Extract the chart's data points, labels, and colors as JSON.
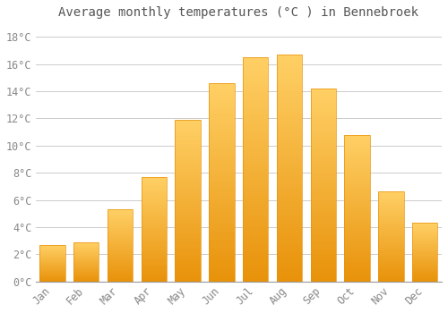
{
  "title": "Average monthly temperatures (°C ) in Bennebroek",
  "months": [
    "Jan",
    "Feb",
    "Mar",
    "Apr",
    "May",
    "Jun",
    "Jul",
    "Aug",
    "Sep",
    "Oct",
    "Nov",
    "Dec"
  ],
  "values": [
    2.7,
    2.9,
    5.3,
    7.7,
    11.9,
    14.6,
    16.5,
    16.7,
    14.2,
    10.8,
    6.6,
    4.3
  ],
  "bar_color": "#FFA500",
  "bar_color_light": "#FFD066",
  "bar_color_dark": "#E8920A",
  "background_color": "#FFFFFF",
  "grid_color": "#CCCCCC",
  "title_color": "#555555",
  "tick_color": "#888888",
  "ylim": [
    0,
    19
  ],
  "ytick_values": [
    0,
    2,
    4,
    6,
    8,
    10,
    12,
    14,
    16,
    18
  ],
  "title_fontsize": 10,
  "tick_fontsize": 8.5
}
